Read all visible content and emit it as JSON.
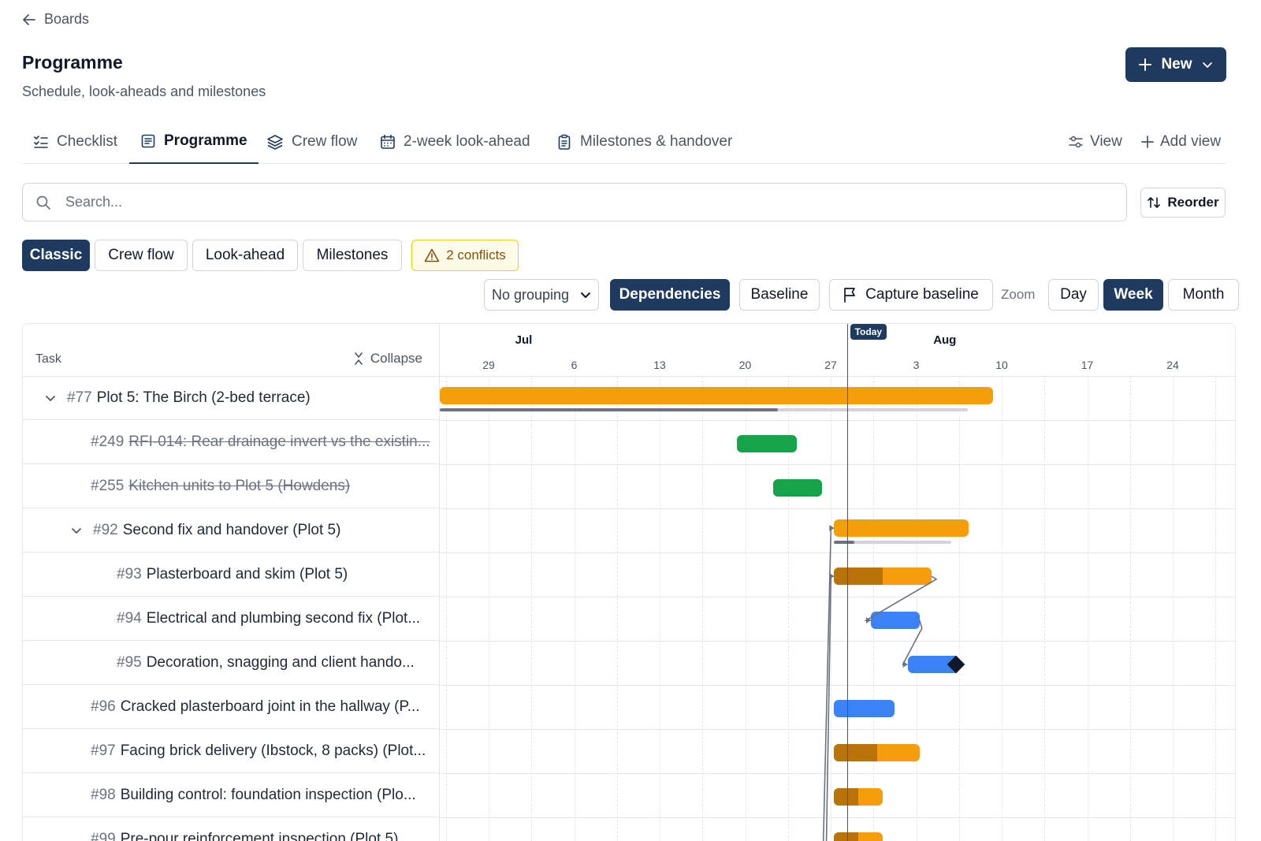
{
  "nav": {
    "back_label": "Boards"
  },
  "header": {
    "title": "Programme",
    "subtitle": "Schedule, look-aheads and milestones",
    "new_label": "New"
  },
  "tabs": [
    {
      "label": "Checklist",
      "icon": "checklist-icon"
    },
    {
      "label": "Programme",
      "icon": "document-icon",
      "active": true
    },
    {
      "label": "Crew flow",
      "icon": "layers-icon"
    },
    {
      "label": "2-week look-ahead",
      "icon": "calendar-icon"
    },
    {
      "label": "Milestones & handover",
      "icon": "clipboard-icon"
    }
  ],
  "tab_actions": {
    "view_label": "View",
    "add_view_label": "Add view"
  },
  "search": {
    "placeholder": "Search..."
  },
  "reorder_label": "Reorder",
  "view_chips": {
    "classic": "Classic",
    "crew_flow": "Crew flow",
    "look_ahead": "Look-ahead",
    "milestones": "Milestones",
    "conflicts": "2 conflicts"
  },
  "controls": {
    "grouping": "No grouping",
    "dependencies": "Dependencies",
    "baseline": "Baseline",
    "capture_baseline": "Capture baseline",
    "zoom_label": "Zoom",
    "day": "Day",
    "week": "Week",
    "month": "Month"
  },
  "gantt": {
    "task_header": "Task",
    "collapse_label": "Collapse",
    "months": [
      {
        "label": "Jul",
        "week_index": 0.31
      },
      {
        "label": "Aug",
        "week_index": 5.2
      }
    ],
    "weeks": [
      "29",
      "6",
      "13",
      "20",
      "27",
      "3",
      "10",
      "17",
      "24"
    ],
    "today_label": "Today",
    "today_week_index": 4.19,
    "rows": [
      {
        "num": "#77",
        "title": "Plot 5: The Birch (2-bed terrace)",
        "level": 0,
        "expandable": true,
        "strike": false,
        "bar": {
          "start": -0.6,
          "end": 5.9,
          "progress": 0,
          "color": "orange"
        },
        "baseline": {
          "start": -0.6,
          "end": 5.6,
          "progress": 0.64
        }
      },
      {
        "num": "#249",
        "title": "RFI-014: Rear drainage invert vs the existin...",
        "level": 1,
        "strike": true,
        "bar": {
          "start": 2.9,
          "end": 3.6,
          "progress": 1,
          "color": "green"
        }
      },
      {
        "num": "#255",
        "title": "Kitchen units to Plot 5 (Howdens)",
        "level": 1,
        "strike": true,
        "bar": {
          "start": 3.33,
          "end": 3.9,
          "progress": 1,
          "color": "green"
        }
      },
      {
        "num": "#92",
        "title": "Second fix and handover (Plot 5)",
        "level": 1,
        "expandable": true,
        "strike": false,
        "bar": {
          "start": 4.04,
          "end": 5.61,
          "progress": 0,
          "color": "orange"
        },
        "baseline": {
          "start": 4.04,
          "end": 5.41,
          "progress": 0.17
        }
      },
      {
        "num": "#93",
        "title": "Plasterboard and skim (Plot 5)",
        "level": 2,
        "strike": false,
        "bar": {
          "start": 4.04,
          "end": 5.18,
          "progress": 0.5,
          "color": "orange"
        }
      },
      {
        "num": "#94",
        "title": "Electrical and plumbing second fix (Plot...",
        "level": 2,
        "strike": false,
        "bar": {
          "start": 4.47,
          "end": 5.04,
          "progress": 0,
          "color": "blue"
        }
      },
      {
        "num": "#95",
        "title": "Decoration, snagging and client hando...",
        "level": 2,
        "strike": false,
        "bar": {
          "start": 4.9,
          "end": 5.47,
          "progress": 0,
          "color": "blue"
        },
        "milestone": true
      },
      {
        "num": "#96",
        "title": "Cracked plasterboard joint in the hallway (P...",
        "level": 1,
        "strike": false,
        "bar": {
          "start": 4.04,
          "end": 4.75,
          "progress": 0,
          "color": "blue"
        }
      },
      {
        "num": "#97",
        "title": "Facing brick delivery (Ibstock, 8 packs) (Plot...",
        "level": 1,
        "strike": false,
        "bar": {
          "start": 4.04,
          "end": 5.04,
          "progress": 0.5,
          "color": "orange"
        }
      },
      {
        "num": "#98",
        "title": "Building control: foundation inspection (Plo...",
        "level": 1,
        "strike": false,
        "bar": {
          "start": 4.04,
          "end": 4.61,
          "progress": 0.5,
          "color": "orange"
        }
      },
      {
        "num": "#99",
        "title": "Pre-pour reinforcement inspection (Plot 5)",
        "level": 1,
        "strike": false,
        "bar": {
          "start": 4.04,
          "end": 4.61,
          "progress": 0.5,
          "color": "orange"
        }
      }
    ],
    "colors": {
      "orange": "#f59e0b",
      "orange_done": "#b8740b",
      "green": "#16a34a",
      "blue": "#3b82f6",
      "accent": "#1e3a5f"
    }
  }
}
